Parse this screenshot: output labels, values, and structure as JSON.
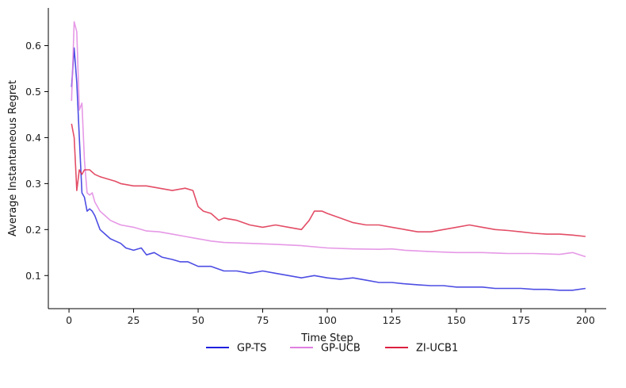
{
  "chart_data": {
    "type": "line",
    "title": "",
    "xlabel": "Time Step",
    "ylabel": "Average Instantaneous Regret",
    "xlim": [
      -8,
      208
    ],
    "ylim": [
      0.028,
      0.682
    ],
    "xticks": [
      0,
      25,
      50,
      75,
      100,
      125,
      150,
      175,
      200
    ],
    "yticks": [
      0.1,
      0.2,
      0.3,
      0.4,
      0.5,
      0.6
    ],
    "ytick_labels": [
      "0.1",
      "0.2",
      "0.3",
      "0.4",
      "0.5",
      "0.6"
    ],
    "grid": false,
    "legend_position": "bottom-center",
    "series": [
      {
        "name": "GP-TS",
        "color": "#2020dd",
        "x": [
          1,
          2,
          3,
          4,
          5,
          6,
          7,
          8,
          9,
          10,
          12,
          14,
          16,
          18,
          20,
          22,
          25,
          28,
          30,
          33,
          36,
          40,
          43,
          46,
          50,
          55,
          60,
          65,
          70,
          75,
          80,
          85,
          90,
          95,
          100,
          105,
          110,
          115,
          120,
          125,
          130,
          135,
          140,
          145,
          150,
          155,
          160,
          165,
          170,
          175,
          180,
          185,
          190,
          195,
          200
        ],
        "y": [
          0.51,
          0.595,
          0.52,
          0.4,
          0.28,
          0.27,
          0.24,
          0.245,
          0.24,
          0.23,
          0.2,
          0.19,
          0.18,
          0.175,
          0.17,
          0.16,
          0.155,
          0.16,
          0.145,
          0.15,
          0.14,
          0.135,
          0.13,
          0.13,
          0.12,
          0.12,
          0.11,
          0.11,
          0.105,
          0.11,
          0.105,
          0.1,
          0.095,
          0.1,
          0.095,
          0.092,
          0.095,
          0.09,
          0.085,
          0.085,
          0.082,
          0.08,
          0.078,
          0.078,
          0.075,
          0.075,
          0.075,
          0.072,
          0.072,
          0.072,
          0.07,
          0.07,
          0.068,
          0.068,
          0.072
        ]
      },
      {
        "name": "GP-UCB",
        "color": "#e080e0",
        "x": [
          1,
          2,
          3,
          4,
          5,
          6,
          7,
          8,
          9,
          10,
          12,
          14,
          16,
          18,
          20,
          25,
          30,
          35,
          40,
          45,
          50,
          55,
          60,
          70,
          80,
          90,
          100,
          110,
          120,
          125,
          130,
          140,
          150,
          160,
          170,
          180,
          190,
          195,
          200
        ],
        "y": [
          0.48,
          0.652,
          0.63,
          0.46,
          0.475,
          0.35,
          0.28,
          0.275,
          0.28,
          0.26,
          0.24,
          0.23,
          0.22,
          0.215,
          0.21,
          0.205,
          0.197,
          0.195,
          0.19,
          0.185,
          0.18,
          0.175,
          0.172,
          0.17,
          0.168,
          0.165,
          0.16,
          0.158,
          0.157,
          0.158,
          0.155,
          0.152,
          0.15,
          0.15,
          0.148,
          0.148,
          0.146,
          0.15,
          0.141
        ]
      },
      {
        "name": "ZI-UCB1",
        "color": "#dc2040",
        "x": [
          1,
          2,
          3,
          4,
          5,
          6,
          7,
          8,
          10,
          12,
          15,
          18,
          20,
          25,
          30,
          35,
          40,
          45,
          48,
          50,
          52,
          55,
          58,
          60,
          65,
          70,
          75,
          80,
          85,
          90,
          93,
          95,
          98,
          100,
          105,
          110,
          115,
          120,
          125,
          130,
          135,
          140,
          145,
          150,
          155,
          160,
          165,
          170,
          175,
          180,
          185,
          190,
          195,
          200
        ],
        "y": [
          0.43,
          0.4,
          0.285,
          0.33,
          0.32,
          0.33,
          0.33,
          0.33,
          0.32,
          0.315,
          0.31,
          0.305,
          0.3,
          0.295,
          0.295,
          0.29,
          0.285,
          0.29,
          0.285,
          0.25,
          0.24,
          0.235,
          0.22,
          0.225,
          0.22,
          0.21,
          0.205,
          0.21,
          0.205,
          0.2,
          0.22,
          0.24,
          0.24,
          0.235,
          0.225,
          0.215,
          0.21,
          0.21,
          0.205,
          0.2,
          0.195,
          0.195,
          0.2,
          0.205,
          0.21,
          0.205,
          0.2,
          0.198,
          0.195,
          0.192,
          0.19,
          0.19,
          0.188,
          0.185
        ]
      }
    ]
  }
}
